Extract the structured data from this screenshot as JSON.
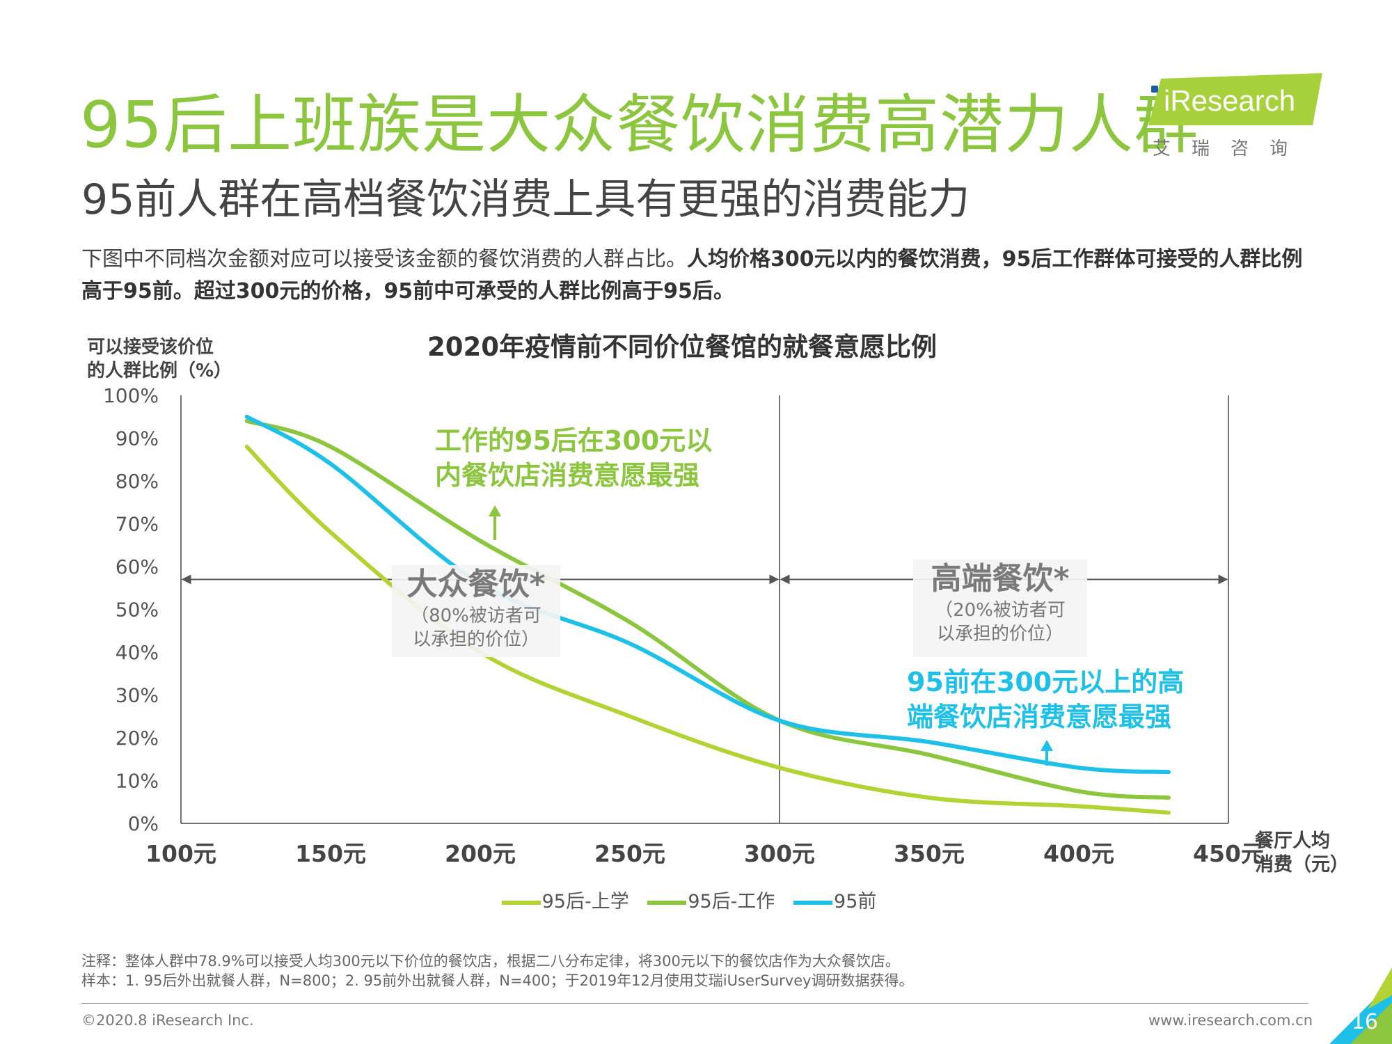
{
  "header": {
    "title": "95后上班族是大众餐饮消费高潜力人群",
    "subtitle": "95前人群在高档餐饮消费上具有更强的消费能力",
    "desc_plain": "下图中不同档次金额对应可以接受该金额的餐饮消费的人群占比。",
    "desc_bold": "人均价格300元以内的餐饮消费，95后工作群体可接受的人群比例高于95前。超过300元的价格，95前中可承受的人群比例高于95后。"
  },
  "logo": {
    "word": "iResearch",
    "cn": "艾瑞咨询"
  },
  "chart_data": {
    "type": "line",
    "title": "2020年疫情前不同价位餐馆的就餐意愿比例",
    "ylabel": "可以接受该价位的人群比例（%）",
    "ylabel_lines": [
      "可以接受该价位",
      "的人群比例（%）"
    ],
    "xlabel_lines": [
      "餐厅人均",
      "消费（元）"
    ],
    "x_ticks": [
      "100元",
      "150元",
      "200元",
      "250元",
      "300元",
      "350元",
      "400元",
      "450元"
    ],
    "y_ticks": [
      "0%",
      "10%",
      "20%",
      "30%",
      "40%",
      "50%",
      "60%",
      "70%",
      "80%",
      "90%",
      "100%"
    ],
    "xlim": [
      100,
      450
    ],
    "ylim": [
      0,
      100
    ],
    "x": [
      122,
      150,
      200,
      250,
      300,
      350,
      400,
      430
    ],
    "series": [
      {
        "name": "95后-上学",
        "color": "#b3d334",
        "values": [
          88,
          68,
          40,
          25,
          13,
          6,
          4,
          2.5
        ]
      },
      {
        "name": "95后-工作",
        "color": "#8cc63f",
        "values": [
          94,
          88,
          66,
          47,
          24,
          16,
          7.5,
          6
        ]
      },
      {
        "name": "95前",
        "color": "#1ec0e8",
        "values": [
          95,
          84,
          56,
          42,
          24,
          19,
          13,
          12
        ]
      }
    ],
    "zones": [
      {
        "title": "大众餐饮*",
        "note_lines": [
          "（80%被访者可",
          "以承担的价位）"
        ],
        "from": 100,
        "to": 300
      },
      {
        "title": "高端餐饮*",
        "note_lines": [
          "（20%被访者可",
          "以承担的价位）"
        ],
        "from": 300,
        "to": 450
      }
    ],
    "annotations": [
      {
        "lines": [
          "工作的95后在300元以",
          "内餐饮店消费意愿最强"
        ],
        "color": "#8cc63f"
      },
      {
        "lines": [
          "95前在300元以上的高",
          "端餐饮店消费意愿最强"
        ],
        "color": "#1ec0e8"
      }
    ]
  },
  "notes": [
    "注释：整体人群中78.9%可以接受人均300元以下价位的餐饮店，根据二八分布定律，将300元以下的餐饮店作为大众餐饮店。",
    "样本：1. 95后外出就餐人群，N=800；2. 95前外出就餐人群，N=400；于2019年12月使用艾瑞iUserSurvey调研数据获得。"
  ],
  "footer": {
    "copyright": "©2020.8  iResearch Inc.",
    "url": "www.iresearch.com.cn",
    "page": "16"
  }
}
